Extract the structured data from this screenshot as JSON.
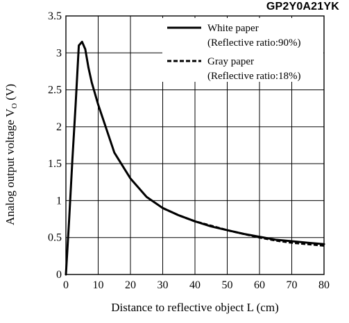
{
  "chart_data": {
    "type": "line",
    "title": "GP2Y0A21YK",
    "xlabel": "Distance to reflective object L (cm)",
    "ylabel_main": "Analog output voltage V",
    "ylabel_sub": "O",
    "ylabel_unit": " (V)",
    "xlim": [
      0,
      80
    ],
    "ylim": [
      0,
      3.5
    ],
    "xticks": [
      0,
      10,
      20,
      30,
      40,
      50,
      60,
      70,
      80
    ],
    "yticks": [
      0,
      0.5,
      1,
      1.5,
      2,
      2.5,
      3,
      3.5
    ],
    "ytick_labels": [
      "0",
      "0.5",
      "1",
      "1.5",
      "2",
      "2.5",
      "3",
      "3.5"
    ],
    "grid": true,
    "legend_position": "top-right",
    "series": [
      {
        "name": "White paper",
        "name_line2": "(Reflective ratio:90%)",
        "style": "solid",
        "x": [
          0,
          1,
          2,
          3,
          4,
          5,
          6,
          7,
          8,
          10,
          15,
          20,
          25,
          30,
          35,
          40,
          45,
          50,
          55,
          60,
          65,
          70,
          75,
          80
        ],
        "y": [
          0,
          0.75,
          1.55,
          2.3,
          3.1,
          3.15,
          3.05,
          2.8,
          2.6,
          2.3,
          1.65,
          1.3,
          1.05,
          0.9,
          0.8,
          0.72,
          0.65,
          0.6,
          0.55,
          0.51,
          0.47,
          0.45,
          0.43,
          0.41
        ]
      },
      {
        "name": "Gray paper",
        "name_line2": "(Reflective ratio:18%)",
        "style": "dashed",
        "x": [
          30,
          35,
          40,
          45,
          50,
          55,
          60,
          65,
          70,
          75,
          80
        ],
        "y": [
          0.9,
          0.8,
          0.72,
          0.66,
          0.6,
          0.55,
          0.5,
          0.46,
          0.43,
          0.41,
          0.39
        ]
      }
    ]
  }
}
